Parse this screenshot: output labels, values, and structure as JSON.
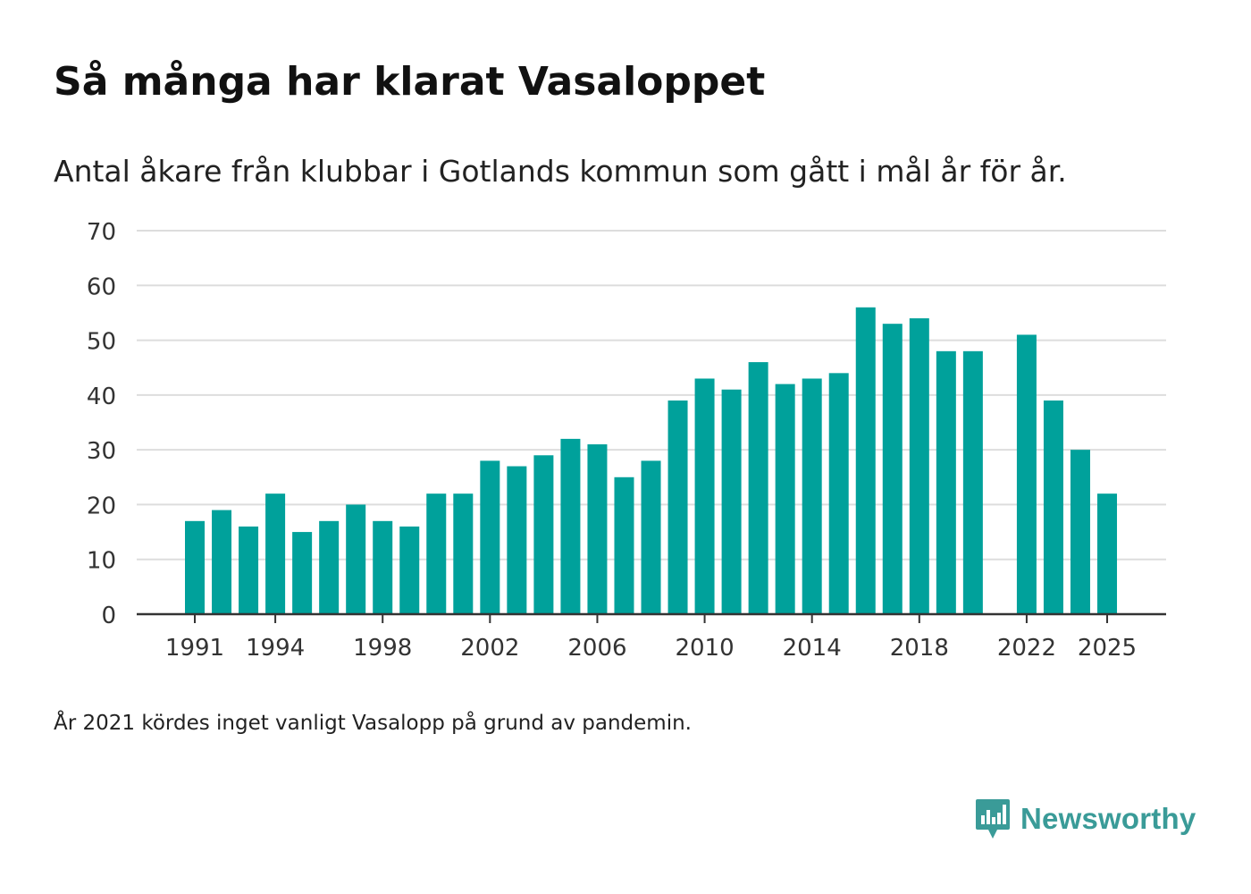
{
  "title": "Så många har klarat Vasaloppet",
  "subtitle": "Antal åkare från klubbar i Gotlands kommun som gått i mål år för år.",
  "note": "År 2021 kördes inget vanligt Vasalopp på grund av pandemin.",
  "brand": {
    "name": "Newsworthy",
    "icon": "newsworthy-logo-icon"
  },
  "colors": {
    "bar": "#00a19b",
    "grid": "#dddddd",
    "axis": "#333333",
    "brand": "#3a9b98"
  },
  "chart_data": {
    "type": "bar",
    "title": "Så många har klarat Vasaloppet",
    "xlabel": "",
    "ylabel": "",
    "ylim": [
      0,
      70
    ],
    "yticks": [
      0,
      10,
      20,
      30,
      40,
      50,
      60,
      70
    ],
    "xticks": [
      1991,
      1994,
      1998,
      2002,
      2006,
      2010,
      2014,
      2018,
      2022,
      2025
    ],
    "grid": true,
    "categories": [
      1991,
      1992,
      1993,
      1994,
      1995,
      1996,
      1997,
      1998,
      1999,
      2000,
      2001,
      2002,
      2003,
      2004,
      2005,
      2006,
      2007,
      2008,
      2009,
      2010,
      2011,
      2012,
      2013,
      2014,
      2015,
      2016,
      2017,
      2018,
      2019,
      2020,
      2021,
      2022,
      2023,
      2024,
      2025
    ],
    "values": [
      17,
      19,
      16,
      22,
      15,
      17,
      20,
      17,
      16,
      22,
      22,
      28,
      27,
      29,
      32,
      31,
      25,
      28,
      39,
      43,
      41,
      46,
      42,
      43,
      44,
      56,
      53,
      54,
      48,
      48,
      null,
      51,
      39,
      30,
      22
    ]
  }
}
